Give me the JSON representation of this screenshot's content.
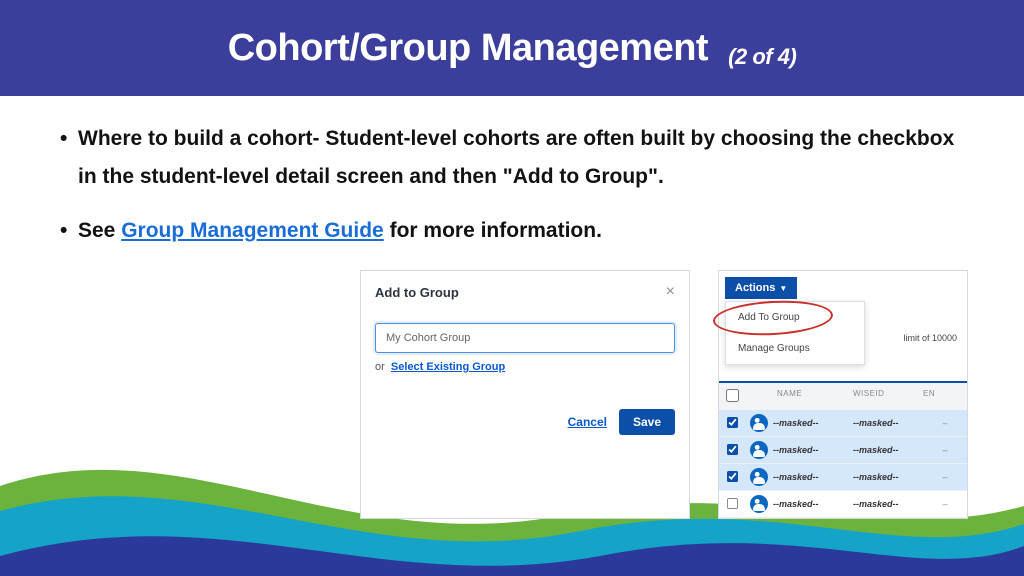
{
  "header": {
    "title": "Cohort/Group Management",
    "subtitle": "(2 of 4)",
    "bg_color": "#3b3e9b",
    "text_color": "#ffffff"
  },
  "bullets": [
    "Where to build a cohort- Student-level cohorts are often built by choosing the checkbox in the student-level detail screen and then \"Add to Group\".",
    "See |LINK| for more information."
  ],
  "link": {
    "text": "Group Management Guide",
    "color": "#1a6dd6"
  },
  "modal": {
    "title": "Add to Group",
    "close_glyph": "×",
    "input_value": "My Cohort Group",
    "or_text": "or",
    "select_link": "Select Existing Group",
    "cancel_label": "Cancel",
    "save_label": "Save",
    "primary_color": "#0b4fa8",
    "link_color": "#0b57d0"
  },
  "table_shot": {
    "actions_label": "Actions",
    "dropdown_items": [
      "Add To Group",
      "Manage Groups"
    ],
    "limit_text": "limit of 10000",
    "columns": [
      "",
      "",
      "NAME",
      "WISEID",
      "EN"
    ],
    "rows": [
      {
        "checked": true,
        "name": "--masked--",
        "wiseid": "--masked--",
        "en": "–"
      },
      {
        "checked": true,
        "name": "--masked--",
        "wiseid": "--masked--",
        "en": "–"
      },
      {
        "checked": true,
        "name": "--masked--",
        "wiseid": "--masked--",
        "en": "–"
      },
      {
        "checked": false,
        "name": "--masked--",
        "wiseid": "--masked--",
        "en": "–"
      }
    ],
    "selected_bg": "#d5e7fb",
    "header_accent": "#0b4fa8",
    "circle_color": "#c9302c"
  },
  "wave": {
    "green": "#6cb33e",
    "cyan": "#15a4c8",
    "blue": "#2b3a9a"
  }
}
